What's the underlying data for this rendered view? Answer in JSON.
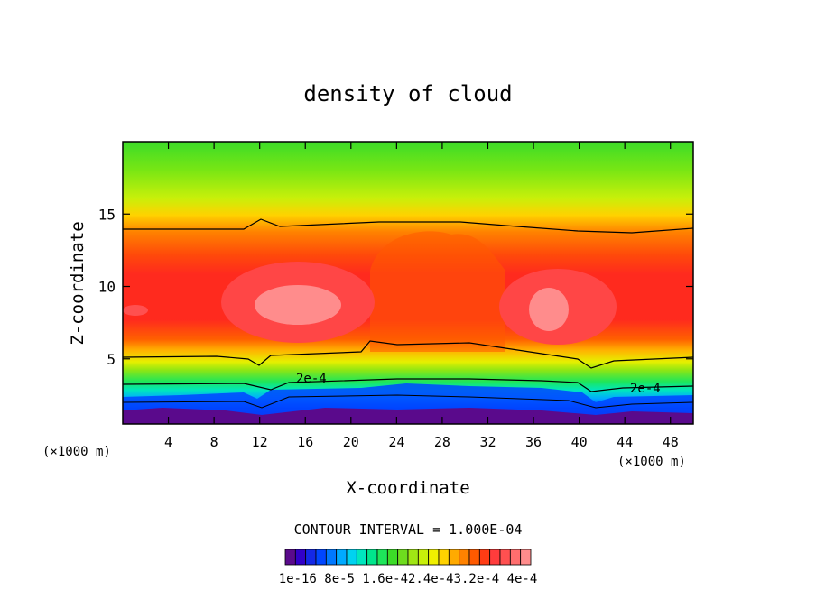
{
  "chart_data": {
    "type": "heatmap",
    "title": "density of cloud",
    "xlabel": "X-coordinate",
    "ylabel": "Z-coordinate",
    "x_unit_left": "(×1000 m)",
    "x_unit_right": "(×1000 m)",
    "xlim": [
      0,
      50
    ],
    "ylim": [
      0.5,
      20
    ],
    "x_ticks": [
      4,
      8,
      12,
      16,
      20,
      24,
      28,
      32,
      36,
      40,
      44,
      48
    ],
    "y_ticks": [
      5,
      10,
      15
    ],
    "contour_interval_text": "CONTOUR INTERVAL = 1.000E-04",
    "contour_labels": [
      {
        "text": "2e-4",
        "x": 16.5,
        "z": 3.4
      },
      {
        "text": "2e-4",
        "x": 46.2,
        "z": 2.8
      }
    ],
    "contour_levels": [
      1e-16,
      0.0001,
      0.0002,
      0.0003
    ],
    "colorbar_labels": [
      "1e-16",
      "8e-5",
      "1.6e-4",
      "2.4e-4",
      "3.2e-4",
      "4e-4"
    ],
    "colorbar_label_text": "1e-16 8e-5 1.6e-42.4e-43.2e-4 4e-4",
    "colorbar_colors": [
      "#5a0a8c",
      "#3200c8",
      "#1428e6",
      "#0046ff",
      "#0078ff",
      "#00aaff",
      "#00d2f0",
      "#00e6be",
      "#00e68c",
      "#1ee65a",
      "#3cdc28",
      "#6edc1e",
      "#a0e614",
      "#c8f00a",
      "#f0f000",
      "#ffd200",
      "#ffaa00",
      "#ff8200",
      "#ff5a00",
      "#ff3c14",
      "#ff3c3c",
      "#ff5050",
      "#ff6e6e",
      "#ff8c8c"
    ]
  }
}
